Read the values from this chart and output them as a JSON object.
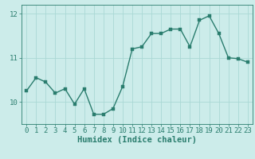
{
  "x": [
    0,
    1,
    2,
    3,
    4,
    5,
    6,
    7,
    8,
    9,
    10,
    11,
    12,
    13,
    14,
    15,
    16,
    17,
    18,
    19,
    20,
    21,
    22,
    23
  ],
  "y": [
    10.25,
    10.55,
    10.45,
    10.2,
    10.3,
    9.95,
    10.3,
    9.72,
    9.72,
    9.85,
    10.35,
    11.2,
    11.25,
    11.55,
    11.55,
    11.65,
    11.65,
    11.25,
    11.85,
    11.95,
    11.55,
    11.0,
    10.98,
    10.9
  ],
  "line_color": "#2a7d6e",
  "marker_color": "#2a7d6e",
  "bg_color": "#ccecea",
  "grid_color": "#aad8d5",
  "axis_color": "#2a7d6e",
  "xlabel": "Humidex (Indice chaleur)",
  "xlim": [
    -0.5,
    23.5
  ],
  "ylim": [
    9.5,
    12.2
  ],
  "yticks": [
    10,
    11,
    12
  ],
  "xticks": [
    0,
    1,
    2,
    3,
    4,
    5,
    6,
    7,
    8,
    9,
    10,
    11,
    12,
    13,
    14,
    15,
    16,
    17,
    18,
    19,
    20,
    21,
    22,
    23
  ],
  "xlabel_fontsize": 7.5,
  "tick_fontsize": 6.5,
  "linewidth": 1.0,
  "markersize": 2.5
}
